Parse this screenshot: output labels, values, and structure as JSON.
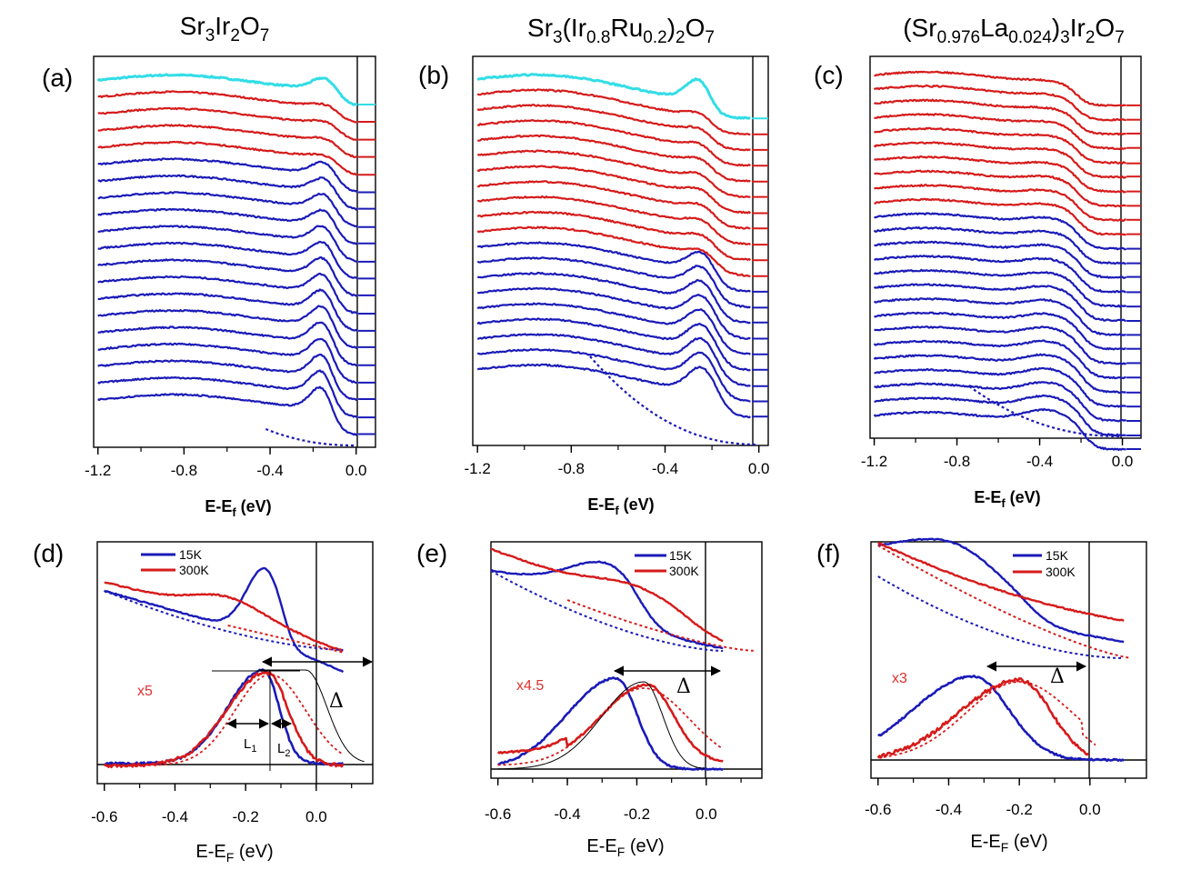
{
  "colors": {
    "cold": "#1a1ab8",
    "hot": "#d61a1a",
    "cyan": "#33dde6",
    "axis": "#000000",
    "label_red": "#e03030"
  },
  "chart_data": [
    {
      "panel": "(a)",
      "type": "line",
      "title": "Sr3Ir2O7",
      "compound_html": "Sr<tspan font-size='19' dy='7'>3</tspan><tspan dy='-7'>Ir</tspan><tspan font-size='19' dy='7'>2</tspan><tspan dy='-7'>O</tspan><tspan font-size='19' dy='7'>7</tspan>",
      "xlabel": "E-E",
      "xlabel_sub": "f",
      "xlabel_unit": " (eV)",
      "xlim": [
        -1.22,
        0.09
      ],
      "xticks": [
        -1.2,
        -0.8,
        -0.4,
        0.0
      ],
      "xtick_labels": [
        "-1.2",
        "-0.8",
        "-0.4",
        "0.0"
      ],
      "series_count": {
        "cyan": 1,
        "red": 4,
        "blue": 15
      },
      "gap_onset_eV": -0.08,
      "peak_eV": -0.13,
      "hump_eV": -0.8
    },
    {
      "panel": "(b)",
      "type": "line",
      "title": "Sr3(Ir0.8Ru0.2)2O7",
      "xlabel": "E-E",
      "xlabel_sub": "f",
      "xlabel_unit": " (eV)",
      "xlim": [
        -1.22,
        0.04
      ],
      "xticks": [
        -1.2,
        -0.8,
        -0.4,
        0.0
      ],
      "xtick_labels": [
        "-1.2",
        "-0.8",
        "-0.4",
        "0.0"
      ],
      "series_count": {
        "cyan": 1,
        "red": 10,
        "blue": 9
      },
      "peak_eV": -0.24,
      "hump_eV": -0.88
    },
    {
      "panel": "(c)",
      "type": "line",
      "title": "(Sr0.976La0.024)3Ir2O7",
      "xlabel": "E-E",
      "xlabel_sub": "f",
      "xlabel_unit": " (eV)",
      "xlim": [
        -1.22,
        0.09
      ],
      "xticks": [
        -1.2,
        -0.8,
        -0.4,
        0.0
      ],
      "xtick_labels": [
        "-1.2",
        "-0.8",
        "-0.4",
        "0.0"
      ],
      "series_count": {
        "cyan": 0,
        "red": 10,
        "blue": 15
      },
      "peak_eV": -0.35,
      "hump_eV": -0.9
    },
    {
      "panel": "(d)",
      "type": "line",
      "xlabel": "E-E",
      "xlabel_sub": "F",
      "xlabel_unit": " (eV)",
      "xlim": [
        -0.62,
        0.16
      ],
      "xticks": [
        -0.6,
        -0.4,
        -0.2,
        0.0
      ],
      "xtick_labels": [
        "-0.6",
        "-0.4",
        "-0.2",
        "0.0"
      ],
      "legend": [
        {
          "label": "15K",
          "color": "#1a1ab8"
        },
        {
          "label": "300K",
          "color": "#d61a1a"
        }
      ],
      "scale_label": "x5",
      "delta": "Δ",
      "l1": "L",
      "l1_sub": "1",
      "l2": "L",
      "l2_sub": "2",
      "peak_15K_eV": -0.14,
      "peak_300K_eV": -0.14
    },
    {
      "panel": "(e)",
      "type": "line",
      "xlabel": "E-E",
      "xlabel_sub": "F",
      "xlabel_unit": " (eV)",
      "xlim": [
        -0.62,
        0.16
      ],
      "xticks": [
        -0.6,
        -0.4,
        -0.2,
        0.0
      ],
      "xtick_labels": [
        "-0.6",
        "-0.4",
        "-0.2",
        "0.0"
      ],
      "legend": [
        {
          "label": "15K",
          "color": "#1a1ab8"
        },
        {
          "label": "300K",
          "color": "#d61a1a"
        }
      ],
      "scale_label": "x4.5",
      "delta": "Δ",
      "peak_15K_eV": -0.26,
      "peak_300K_eV": -0.17
    },
    {
      "panel": "(f)",
      "type": "line",
      "xlabel": "E-E",
      "xlabel_sub": "F",
      "xlabel_unit": " (eV)",
      "xlim": [
        -0.62,
        0.16
      ],
      "xticks": [
        -0.6,
        -0.4,
        -0.2,
        0.0
      ],
      "xtick_labels": [
        "-0.6",
        "-0.4",
        "-0.2",
        "0.0"
      ],
      "legend": [
        {
          "label": "15K",
          "color": "#1a1ab8"
        },
        {
          "label": "300K",
          "color": "#d61a1a"
        }
      ],
      "scale_label": "x3",
      "delta": "Δ",
      "peak_15K_eV": -0.33,
      "peak_300K_eV": -0.2
    }
  ]
}
